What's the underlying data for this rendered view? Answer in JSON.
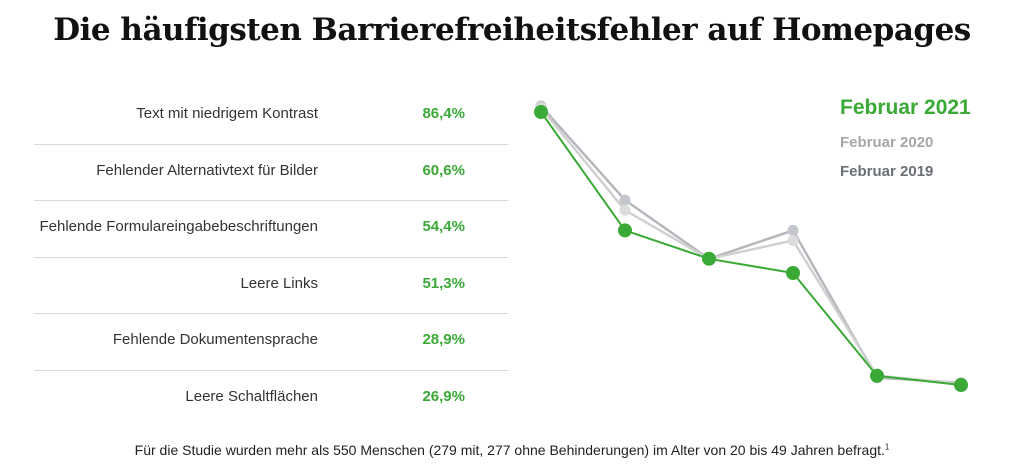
{
  "title": "Die häufigsten Barrierefreiheitsfehler auf Homepages",
  "table": {
    "rows": [
      {
        "label": "Text mit niedrigem Kontrast",
        "value": "86,4%"
      },
      {
        "label": "Fehlender Alternativtext für Bilder",
        "value": "60,6%"
      },
      {
        "label": "Fehlende Formulareingabebeschriftungen",
        "value": "54,4%"
      },
      {
        "label": "Leere Links",
        "value": "51,3%"
      },
      {
        "label": "Fehlende Dokumentensprache",
        "value": "28,9%"
      },
      {
        "label": "Leere Schaltflächen",
        "value": "26,9%"
      }
    ]
  },
  "legend": {
    "items": [
      {
        "label": "Februar 2021",
        "color": "#3aa935"
      },
      {
        "label": "Februar 2020",
        "color": "#a6a6a6"
      },
      {
        "label": "Februar 2019",
        "color": "#6b7075"
      }
    ]
  },
  "footnote": {
    "text": "Für die Studie wurden mehr als 550 Menschen (279 mit, 277 ohne Behinderungen) im Alter von 20 bis 49 Jahren befragt.",
    "marker": "1"
  },
  "chart_data": {
    "type": "line",
    "title": "Die häufigsten Barrierefreiheitsfehler auf Homepages",
    "categories": [
      "Text mit niedrigem Kontrast",
      "Fehlender Alternativtext für Bilder",
      "Fehlende Formulareingabebeschriftungen",
      "Leere Links",
      "Fehlende Dokumentensprache",
      "Leere Schaltflächen"
    ],
    "xlabel": "",
    "ylabel": "",
    "unit": "%",
    "ylim": [
      26.9,
      86.4
    ],
    "grid": false,
    "legend_position": "top-right",
    "series": [
      {
        "name": "Februar 2019",
        "color": "#b4b8bd",
        "dot_color": "#c3c6cc",
        "values": [
          87.7,
          67.2,
          54.4,
          60.6,
          28.5,
          27.4
        ]
      },
      {
        "name": "Februar 2020",
        "color": "#d0d0d0",
        "dot_color": "#dcdcdc",
        "values": [
          87.3,
          65.0,
          54.4,
          58.4,
          28.9,
          27.2
        ]
      },
      {
        "name": "Februar 2021",
        "color": "#3aa935",
        "dot_color": "#3aa935",
        "values": [
          86.4,
          60.6,
          54.4,
          51.3,
          28.9,
          26.9
        ]
      }
    ]
  }
}
